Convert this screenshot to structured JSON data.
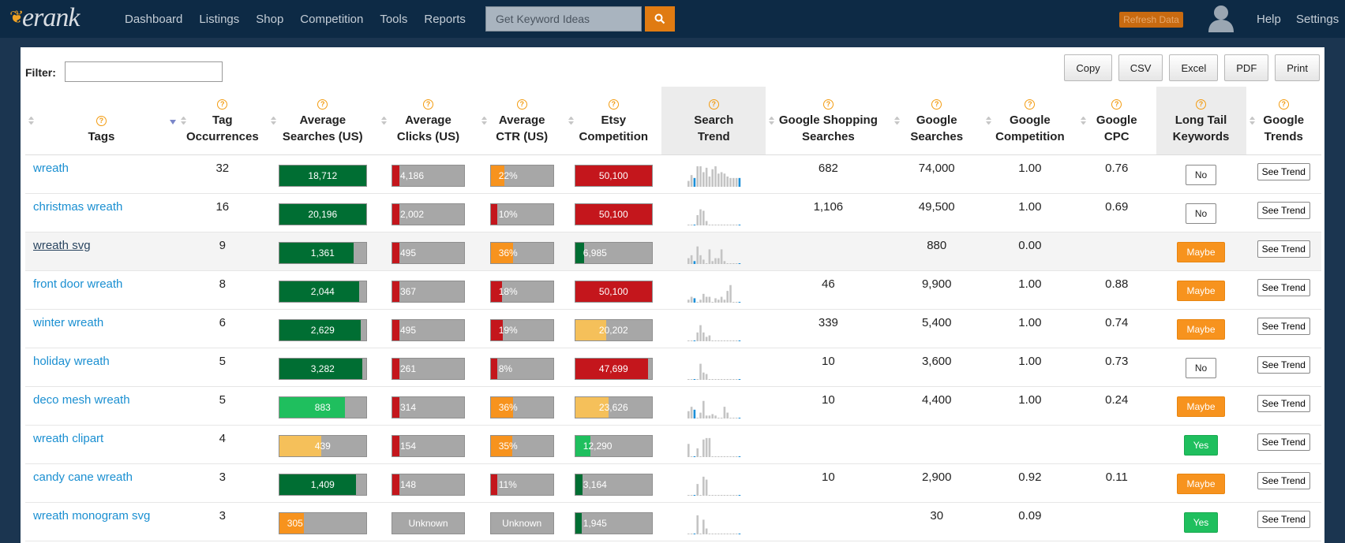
{
  "topnav": {
    "logo_text": "erank",
    "items": [
      "Dashboard",
      "Listings",
      "Shop",
      "Competition",
      "Tools",
      "Reports"
    ],
    "search_placeholder": "Get Keyword Ideas",
    "refresh_label": "Refresh Data",
    "help_label": "Help",
    "settings_label": "Settings"
  },
  "toolbar": {
    "filter_label": "Filter:",
    "filter_value": "",
    "buttons": [
      "Copy",
      "CSV",
      "Excel",
      "PDF",
      "Print"
    ]
  },
  "columns": [
    {
      "l1": "",
      "l2": "Tags"
    },
    {
      "l1": "Tag",
      "l2": "Occurrences"
    },
    {
      "l1": "Average",
      "l2": "Searches (US)"
    },
    {
      "l1": "Average",
      "l2": "Clicks (US)"
    },
    {
      "l1": "Average",
      "l2": "CTR (US)"
    },
    {
      "l1": "Etsy",
      "l2": "Competition"
    },
    {
      "l1": "Search",
      "l2": "Trend"
    },
    {
      "l1": "Google Shopping",
      "l2": "Searches"
    },
    {
      "l1": "Google",
      "l2": "Searches"
    },
    {
      "l1": "Google",
      "l2": "Competition"
    },
    {
      "l1": "Google",
      "l2": "CPC"
    },
    {
      "l1": "Long Tail",
      "l2": "Keywords"
    },
    {
      "l1": "Google",
      "l2": "Trends"
    }
  ],
  "colors": {
    "dark_green": "#006e33",
    "light_green": "#1fbf5e",
    "yellow": "#f5c05a",
    "orange": "#f7931e",
    "red": "#c4161c",
    "link": "#1a8fd1"
  },
  "see_trend_label": "See Trend",
  "rows": [
    {
      "tag": "wreath",
      "occ": "32",
      "searches": {
        "label": "18,712",
        "pct": 100,
        "color": "dark_green"
      },
      "clicks": {
        "label": "4,186",
        "pct": 10,
        "color": "red"
      },
      "ctr": {
        "label": "22%",
        "pct": 22,
        "color": "orange"
      },
      "etsy": {
        "label": "50,100",
        "pct": 100,
        "color": "red"
      },
      "trend": [
        4,
        8,
        6,
        14,
        14,
        10,
        13,
        7,
        12,
        14,
        9,
        10,
        9,
        7,
        6,
        6,
        6,
        6
      ],
      "gshop": "682",
      "gsearch": "74,000",
      "gcomp": "1.00",
      "gcpc": "0.76",
      "longtail": "No",
      "link_style": ""
    },
    {
      "tag": "christmas wreath",
      "occ": "16",
      "searches": {
        "label": "20,196",
        "pct": 100,
        "color": "dark_green"
      },
      "clicks": {
        "label": "2,002",
        "pct": 10,
        "color": "red"
      },
      "ctr": {
        "label": "10%",
        "pct": 10,
        "color": "red"
      },
      "etsy": {
        "label": "50,100",
        "pct": 100,
        "color": "red"
      },
      "trend": [
        0.5,
        0.5,
        0.5,
        7,
        11,
        10,
        3,
        0.5,
        0.5,
        0.5,
        0.5,
        0.5,
        0.5,
        0.5,
        0.5,
        0.5,
        0.5,
        0.5
      ],
      "gshop": "1,106",
      "gsearch": "49,500",
      "gcomp": "1.00",
      "gcpc": "0.69",
      "longtail": "No",
      "link_style": ""
    },
    {
      "tag": "wreath svg",
      "occ": "9",
      "searches": {
        "label": "1,361",
        "pct": 86,
        "color": "dark_green"
      },
      "clicks": {
        "label": "495",
        "pct": 10,
        "color": "red"
      },
      "ctr": {
        "label": "36%",
        "pct": 36,
        "color": "orange"
      },
      "etsy": {
        "label": "6,985",
        "pct": 12,
        "color": "dark_green"
      },
      "trend": [
        4,
        6,
        2,
        12,
        6,
        3,
        0.5,
        10,
        2,
        4,
        4,
        10,
        2,
        0.5,
        0.5,
        0.5,
        0.5,
        0.5
      ],
      "gshop": "",
      "gsearch": "880",
      "gcomp": "0.00",
      "gcpc": "",
      "longtail": "Maybe",
      "link_style": "u"
    },
    {
      "tag": "front door wreath",
      "occ": "8",
      "searches": {
        "label": "2,044",
        "pct": 92,
        "color": "dark_green"
      },
      "clicks": {
        "label": "367",
        "pct": 10,
        "color": "red"
      },
      "ctr": {
        "label": "18%",
        "pct": 18,
        "color": "red"
      },
      "etsy": {
        "label": "50,100",
        "pct": 100,
        "color": "red"
      },
      "trend": [
        2,
        4,
        3,
        0.5,
        2,
        6,
        4,
        4,
        0.5,
        3,
        2,
        4,
        2,
        8,
        12,
        0.5,
        0.5,
        0.5
      ],
      "gshop": "46",
      "gsearch": "9,900",
      "gcomp": "1.00",
      "gcpc": "0.88",
      "longtail": "Maybe",
      "link_style": ""
    },
    {
      "tag": "winter wreath",
      "occ": "6",
      "searches": {
        "label": "2,629",
        "pct": 94,
        "color": "dark_green"
      },
      "clicks": {
        "label": "495",
        "pct": 10,
        "color": "red"
      },
      "ctr": {
        "label": "19%",
        "pct": 19,
        "color": "red"
      },
      "etsy": {
        "label": "20,202",
        "pct": 40,
        "color": "yellow"
      },
      "trend": [
        0.5,
        0.5,
        0.5,
        6,
        11,
        6,
        3,
        4,
        0.5,
        0.5,
        0.5,
        0.5,
        0.5,
        0.5,
        0.5,
        0.5,
        0.5,
        0.5
      ],
      "gshop": "339",
      "gsearch": "5,400",
      "gcomp": "1.00",
      "gcpc": "0.74",
      "longtail": "Maybe",
      "link_style": ""
    },
    {
      "tag": "holiday wreath",
      "occ": "5",
      "searches": {
        "label": "3,282",
        "pct": 96,
        "color": "dark_green"
      },
      "clicks": {
        "label": "261",
        "pct": 10,
        "color": "red"
      },
      "ctr": {
        "label": "8%",
        "pct": 10,
        "color": "red"
      },
      "etsy": {
        "label": "47,699",
        "pct": 95,
        "color": "red"
      },
      "trend": [
        0.5,
        0.5,
        0.5,
        0.5,
        11,
        5,
        4,
        0.5,
        0.5,
        0.5,
        0.5,
        0.5,
        0.5,
        0.5,
        0.5,
        0.5,
        0.5,
        0.5
      ],
      "gshop": "10",
      "gsearch": "3,600",
      "gcomp": "1.00",
      "gcpc": "0.73",
      "longtail": "No",
      "link_style": ""
    },
    {
      "tag": "deco mesh wreath",
      "occ": "5",
      "searches": {
        "label": "883",
        "pct": 76,
        "color": "light_green"
      },
      "clicks": {
        "label": "314",
        "pct": 10,
        "color": "red"
      },
      "ctr": {
        "label": "36%",
        "pct": 36,
        "color": "orange"
      },
      "etsy": {
        "label": "23,626",
        "pct": 44,
        "color": "yellow"
      },
      "trend": [
        5,
        8,
        6,
        0.5,
        4,
        12,
        2,
        2,
        3,
        2,
        0.5,
        0.5,
        8,
        4,
        0.5,
        0.5,
        0.5,
        0.5
      ],
      "gshop": "10",
      "gsearch": "4,400",
      "gcomp": "1.00",
      "gcpc": "0.24",
      "longtail": "Maybe",
      "link_style": ""
    },
    {
      "tag": "wreath clipart",
      "occ": "4",
      "searches": {
        "label": "439",
        "pct": 48,
        "color": "yellow"
      },
      "clicks": {
        "label": "154",
        "pct": 10,
        "color": "red"
      },
      "ctr": {
        "label": "35%",
        "pct": 35,
        "color": "orange"
      },
      "etsy": {
        "label": "12,290",
        "pct": 20,
        "color": "light_green"
      },
      "trend": [
        9,
        0.5,
        0.5,
        6,
        0.5,
        12,
        13,
        13,
        0.5,
        0.5,
        0.5,
        0.5,
        0.5,
        0.5,
        0.5,
        0.5,
        0.5,
        0.5
      ],
      "gshop": "",
      "gsearch": "",
      "gcomp": "",
      "gcpc": "",
      "longtail": "Yes",
      "link_style": ""
    },
    {
      "tag": "candy cane wreath",
      "occ": "3",
      "searches": {
        "label": "1,409",
        "pct": 88,
        "color": "dark_green"
      },
      "clicks": {
        "label": "148",
        "pct": 10,
        "color": "red"
      },
      "ctr": {
        "label": "11%",
        "pct": 11,
        "color": "red"
      },
      "etsy": {
        "label": "3,164",
        "pct": 10,
        "color": "dark_green"
      },
      "trend": [
        0.5,
        0.5,
        0.5,
        8,
        0.5,
        13,
        11,
        0.5,
        0.5,
        0.5,
        0.5,
        0.5,
        0.5,
        0.5,
        0.5,
        0.5,
        0.5,
        0.5
      ],
      "gshop": "10",
      "gsearch": "2,900",
      "gcomp": "0.92",
      "gcpc": "0.11",
      "longtail": "Maybe",
      "link_style": ""
    },
    {
      "tag": "wreath monogram svg",
      "occ": "3",
      "searches": {
        "label": "305",
        "pct": 28,
        "color": "orange"
      },
      "clicks": {
        "label": "Unknown",
        "pct": 0,
        "color": "red"
      },
      "ctr": {
        "label": "Unknown",
        "pct": 0,
        "color": "red"
      },
      "etsy": {
        "label": "1,945",
        "pct": 8,
        "color": "dark_green"
      },
      "trend": [
        0.5,
        0.5,
        0.5,
        13,
        0.5,
        10,
        4,
        0.5,
        0.5,
        0.5,
        0.5,
        0.5,
        0.5,
        0.5,
        0.5,
        0.5,
        0.5,
        0.5
      ],
      "gshop": "",
      "gsearch": "30",
      "gcomp": "0.09",
      "gcpc": "",
      "longtail": "Yes",
      "link_style": ""
    }
  ]
}
